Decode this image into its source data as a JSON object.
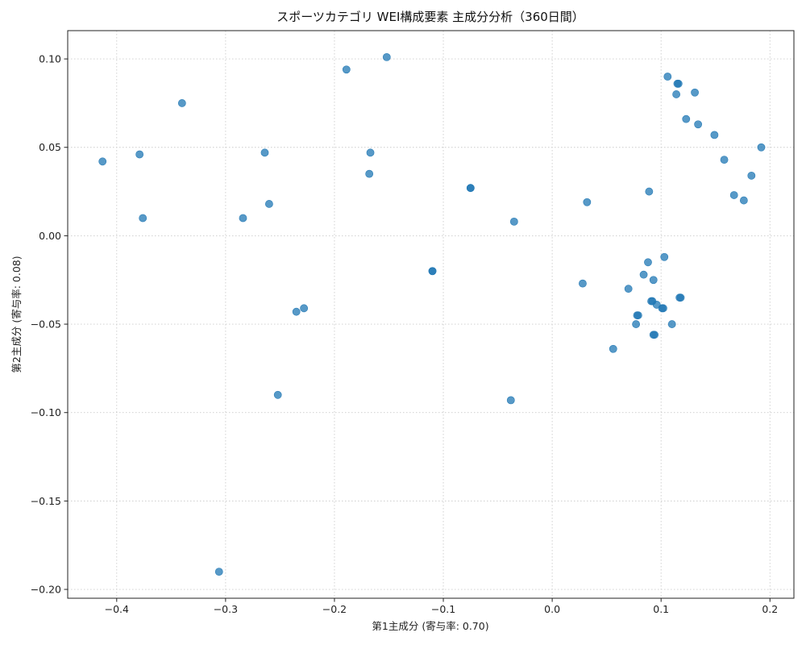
{
  "chart_data": {
    "type": "scatter",
    "title": "スポーツカテゴリ WEI構成要素 主成分分析（360日間）",
    "xlabel": "第1主成分 (寄与率: 0.70)",
    "ylabel": "第2主成分 (寄与率: 0.08)",
    "xlim": [
      -0.445,
      0.222
    ],
    "ylim": [
      -0.205,
      0.116
    ],
    "xticks": [
      -0.4,
      -0.3,
      -0.2,
      -0.1,
      0.0,
      0.1,
      0.2
    ],
    "xtick_labels": [
      "−0.4",
      "−0.3",
      "−0.2",
      "−0.1",
      "0.0",
      "0.1",
      "0.2"
    ],
    "yticks": [
      -0.2,
      -0.15,
      -0.1,
      -0.05,
      0.0,
      0.05,
      0.1
    ],
    "ytick_labels": [
      "−0.20",
      "−0.15",
      "−0.10",
      "−0.05",
      "0.00",
      "0.05",
      "0.10"
    ],
    "grid": true,
    "marker_color": "#1f77b4",
    "marker_opacity": 0.75,
    "points": [
      [
        -0.413,
        0.042
      ],
      [
        -0.379,
        0.046
      ],
      [
        -0.376,
        0.01
      ],
      [
        -0.34,
        0.075
      ],
      [
        -0.306,
        -0.19
      ],
      [
        -0.284,
        0.01
      ],
      [
        -0.264,
        0.047
      ],
      [
        -0.26,
        0.018
      ],
      [
        -0.252,
        -0.09
      ],
      [
        -0.235,
        -0.043
      ],
      [
        -0.228,
        -0.041
      ],
      [
        -0.189,
        0.094
      ],
      [
        -0.152,
        0.101
      ],
      [
        -0.167,
        0.047
      ],
      [
        -0.168,
        0.035
      ],
      [
        -0.11,
        -0.02
      ],
      [
        -0.11,
        -0.02
      ],
      [
        -0.075,
        0.027
      ],
      [
        -0.075,
        0.027
      ],
      [
        -0.035,
        0.008
      ],
      [
        -0.038,
        -0.093
      ],
      [
        0.028,
        -0.027
      ],
      [
        0.032,
        0.019
      ],
      [
        0.056,
        -0.064
      ],
      [
        0.07,
        -0.03
      ],
      [
        0.077,
        -0.05
      ],
      [
        0.078,
        -0.045
      ],
      [
        0.079,
        -0.045
      ],
      [
        0.084,
        -0.022
      ],
      [
        0.088,
        -0.015
      ],
      [
        0.089,
        0.025
      ],
      [
        0.091,
        -0.037
      ],
      [
        0.092,
        -0.037
      ],
      [
        0.093,
        -0.025
      ],
      [
        0.093,
        -0.056
      ],
      [
        0.094,
        -0.056
      ],
      [
        0.096,
        -0.039
      ],
      [
        0.101,
        -0.041
      ],
      [
        0.102,
        -0.041
      ],
      [
        0.103,
        -0.012
      ],
      [
        0.106,
        0.09
      ],
      [
        0.11,
        -0.05
      ],
      [
        0.114,
        0.08
      ],
      [
        0.115,
        0.086
      ],
      [
        0.116,
        0.086
      ],
      [
        0.117,
        -0.035
      ],
      [
        0.118,
        -0.035
      ],
      [
        0.123,
        0.066
      ],
      [
        0.131,
        0.081
      ],
      [
        0.134,
        0.063
      ],
      [
        0.149,
        0.057
      ],
      [
        0.158,
        0.043
      ],
      [
        0.167,
        0.023
      ],
      [
        0.176,
        0.02
      ],
      [
        0.183,
        0.034
      ],
      [
        0.192,
        0.05
      ]
    ]
  }
}
